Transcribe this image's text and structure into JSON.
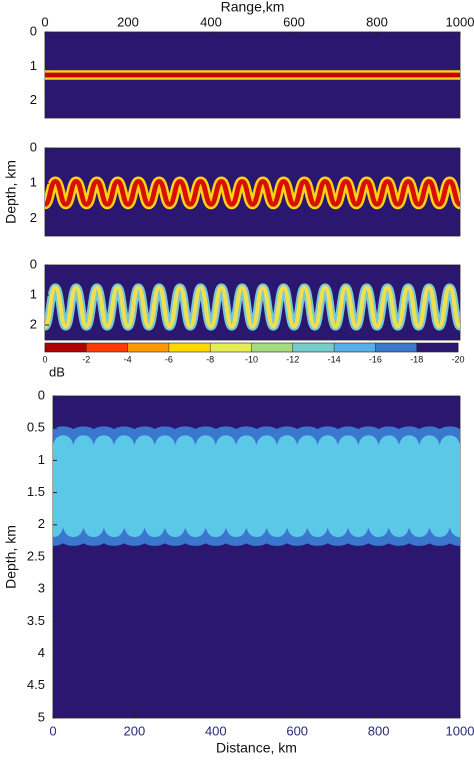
{
  "chart_data": [
    {
      "type": "beam",
      "title": "Range,km",
      "background": "#2b1670",
      "color": "#c80000",
      "edge_color": "#ffd21a",
      "x": [
        0,
        1000
      ],
      "values": [
        1.25,
        1.25
      ],
      "xlim": [
        0,
        1000
      ],
      "xticks": [
        0,
        200,
        400,
        600,
        800,
        1000
      ],
      "ylim": [
        0,
        2.5
      ],
      "yticks": [
        0,
        1,
        2
      ]
    },
    {
      "type": "beam",
      "ylabel": "Depth, km",
      "background": "#2b1670",
      "color": "#d81000",
      "edge_color": "#ffd21a",
      "x": [
        0,
        25,
        50,
        75,
        100,
        125,
        150,
        175,
        200,
        225,
        250,
        275,
        300,
        325,
        350,
        375,
        400,
        425,
        450,
        475,
        500,
        525,
        550,
        575,
        600,
        625,
        650,
        675,
        700,
        725,
        750,
        775,
        800,
        825,
        850,
        875,
        900,
        925,
        950,
        975,
        1000
      ],
      "values": [
        1.6,
        0.95,
        1.6,
        0.95,
        1.6,
        0.95,
        1.6,
        0.95,
        1.6,
        0.95,
        1.6,
        0.95,
        1.6,
        0.95,
        1.6,
        0.95,
        1.6,
        0.95,
        1.6,
        0.95,
        1.6,
        0.95,
        1.6,
        0.95,
        1.6,
        0.95,
        1.6,
        0.95,
        1.6,
        0.95,
        1.6,
        0.95,
        1.6,
        0.95,
        1.6,
        0.95,
        1.6,
        0.95,
        1.6,
        0.95,
        1.6
      ],
      "xlim": [
        0,
        1000
      ],
      "ylim": [
        0,
        2.5
      ],
      "yticks": [
        0,
        1,
        2
      ]
    },
    {
      "type": "beam",
      "background": "#2b1670",
      "color": "#f0e050",
      "edge_color": "#78c8d8",
      "x": [
        0,
        25,
        50,
        75,
        100,
        125,
        150,
        175,
        200,
        225,
        250,
        275,
        300,
        325,
        350,
        375,
        400,
        425,
        450,
        475,
        500,
        525,
        550,
        575,
        600,
        625,
        650,
        675,
        700,
        725,
        750,
        775,
        800,
        825,
        850,
        875,
        900,
        925,
        950,
        975,
        1000
      ],
      "values": [
        2.05,
        0.75,
        2.05,
        0.75,
        2.05,
        0.75,
        2.05,
        0.75,
        2.05,
        0.75,
        2.05,
        0.75,
        2.05,
        0.75,
        2.05,
        0.75,
        2.05,
        0.75,
        2.05,
        0.75,
        2.05,
        0.75,
        2.05,
        0.75,
        2.05,
        0.75,
        2.05,
        0.75,
        2.05,
        0.75,
        2.05,
        0.75,
        2.05,
        0.75,
        2.05,
        0.75,
        2.05,
        0.75,
        2.05,
        0.75,
        2.05
      ],
      "xlim": [
        0,
        1000
      ],
      "ylim": [
        0,
        2.5
      ],
      "yticks": [
        0,
        1,
        2
      ]
    },
    {
      "type": "colorbar",
      "label": "dB",
      "ticks": [
        0,
        -2,
        -4,
        -6,
        -8,
        -10,
        -12,
        -14,
        -16,
        -18,
        -20
      ],
      "colors": [
        "#b00000",
        "#ff3a00",
        "#ff9a00",
        "#ffd800",
        "#e4ee50",
        "#a6dc80",
        "#74cccc",
        "#58b0e8",
        "#3a78d0",
        "#2b1670"
      ]
    },
    {
      "type": "beam",
      "xlabel": "Distance, km",
      "ylabel": "Depth, km",
      "background": "#2b1670",
      "color": "#5cc8e8",
      "edge_color": "#3a78d0",
      "x": [
        0,
        25,
        50,
        75,
        100,
        125,
        150,
        175,
        200,
        225,
        250,
        275,
        300,
        325,
        350,
        375,
        400,
        425,
        450,
        475,
        500,
        525,
        550,
        575,
        600,
        625,
        650,
        675,
        700,
        725,
        750,
        775,
        800,
        825,
        850,
        875,
        900,
        925,
        950,
        975,
        1000
      ],
      "values": [
        2.05,
        0.75,
        2.05,
        0.75,
        2.05,
        0.75,
        2.05,
        0.75,
        2.05,
        0.75,
        2.05,
        0.75,
        2.05,
        0.75,
        2.05,
        0.75,
        2.05,
        0.75,
        2.05,
        0.75,
        2.05,
        0.75,
        2.05,
        0.75,
        2.05,
        0.75,
        2.05,
        0.75,
        2.05,
        0.75,
        2.05,
        0.75,
        2.05,
        0.75,
        2.05,
        0.75,
        2.05,
        0.75,
        2.05,
        0.75,
        2.05
      ],
      "xlim": [
        0,
        1000
      ],
      "xticks": [
        0,
        200,
        400,
        600,
        800,
        1000
      ],
      "ylim": [
        0,
        5
      ],
      "yticks": [
        0,
        0.5,
        1,
        1.5,
        2,
        2.5,
        3,
        3.5,
        4,
        4.5,
        5
      ]
    }
  ]
}
